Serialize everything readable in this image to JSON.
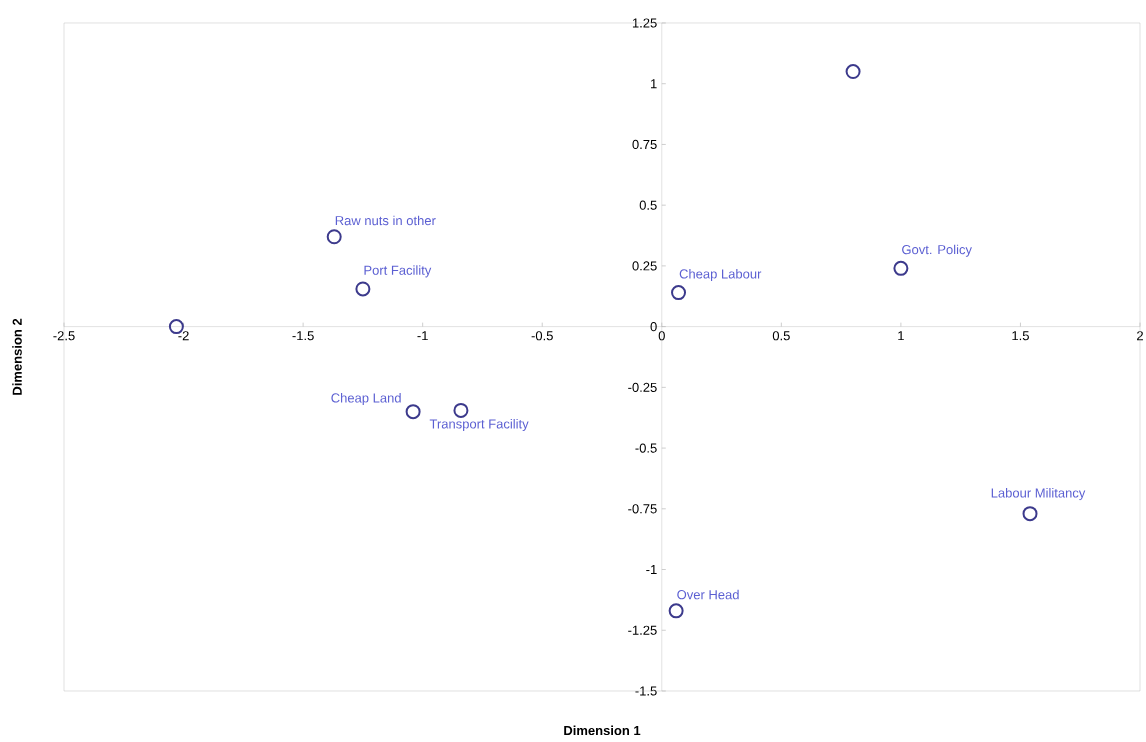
{
  "chart_data": {
    "type": "scatter",
    "xlabel": "Dimension 1",
    "ylabel": "Dimension 2",
    "marker": "circle",
    "grid": false,
    "x": [
      0.8,
      -1.37,
      -1.25,
      -2.03,
      -1.04,
      -0.84,
      0.07,
      1.0,
      1.54,
      0.06
    ],
    "series": [
      {
        "color": "#3c3a8c",
        "values": [
          1.05,
          0.37,
          0.155,
          0.0,
          -0.35,
          -0.345,
          0.14,
          0.24,
          -0.77,
          -1.17
        ]
      }
    ],
    "xlim": [
      -2.5,
      2
    ],
    "xticks": [
      -2.5,
      -2,
      -1.5,
      -1,
      -0.5,
      0,
      0.5,
      1,
      1.5,
      2
    ],
    "ylim": [
      -1.5,
      1.25
    ],
    "yticks": [
      1.25,
      1,
      0.75,
      0.5,
      0.25,
      0,
      -0.25,
      -0.5,
      -0.75,
      -1,
      -1.25,
      -1.5
    ],
    "annotations": [
      {
        "text": "Raw nuts in other",
        "x": -1.37,
        "y": 0.37
      },
      {
        "text": "Port Facility",
        "x": -1.25,
        "y": 0.155
      },
      {
        "text": "Cheap Land",
        "x": -1.04,
        "y": -0.35
      },
      {
        "text": "Transport Facility",
        "x": -0.84,
        "y": -0.345
      },
      {
        "text": "Cheap Labour",
        "x": 0.07,
        "y": 0.14
      },
      {
        "text": "Govt. Policy",
        "x": 1.0,
        "y": 0.24
      },
      {
        "text": "Labour Militancy",
        "x": 1.54,
        "y": -0.77
      },
      {
        "text": "Over Head",
        "x": 0.06,
        "y": -1.17
      }
    ]
  }
}
